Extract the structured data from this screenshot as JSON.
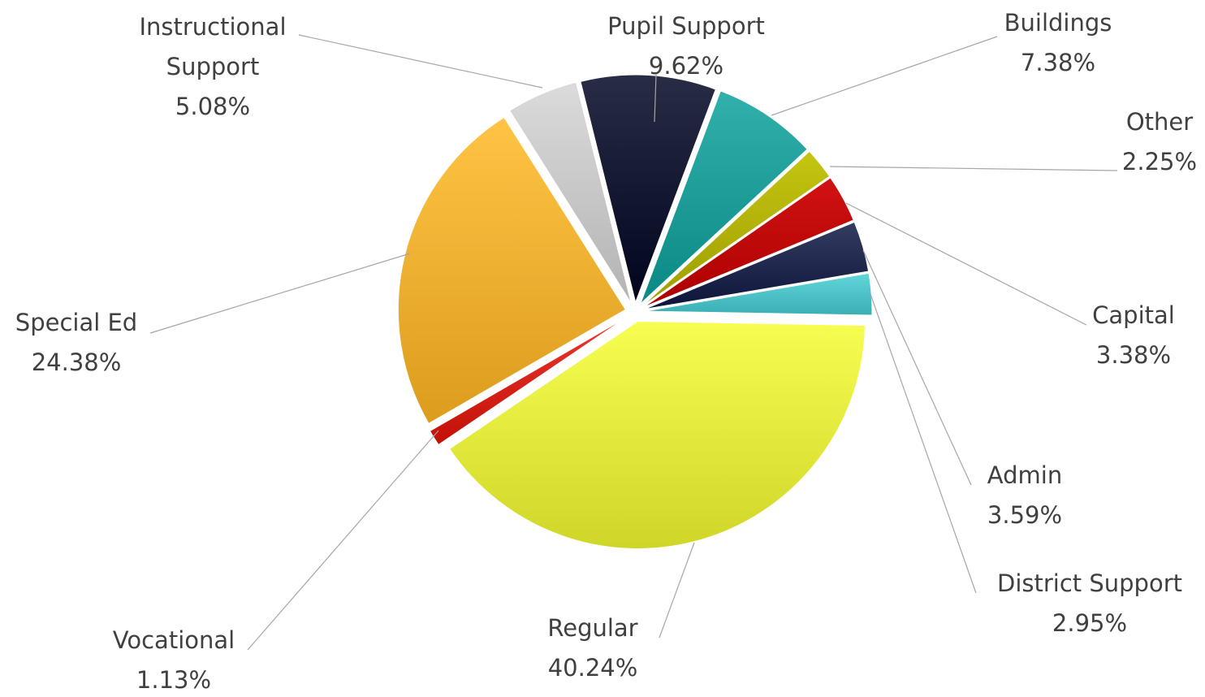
{
  "chart_data": {
    "type": "pie",
    "title": "",
    "legend": "none",
    "slices": [
      {
        "label": "Pupil Support",
        "value": 9.62,
        "display": "9.62%",
        "color": "#161a33"
      },
      {
        "label": "Buildings",
        "value": 7.38,
        "display": "7.38%",
        "color": "#1f9e9a"
      },
      {
        "label": "Other",
        "value": 2.25,
        "display": "2.25%",
        "color": "#b3b300"
      },
      {
        "label": "Capital",
        "value": 3.38,
        "display": "3.38%",
        "color": "#c00000"
      },
      {
        "label": "Admin",
        "value": 3.59,
        "display": "3.59%",
        "color": "#222a4f"
      },
      {
        "label": "District Support",
        "value": 2.95,
        "display": "2.95%",
        "color": "#4fc4c9"
      },
      {
        "label": "Regular",
        "value": 40.24,
        "display": "40.24%",
        "color": "#e6ec3e"
      },
      {
        "label": "Vocational",
        "value": 1.13,
        "display": "1.13%",
        "color": "#d9261c"
      },
      {
        "label": "Special Ed",
        "value": 24.38,
        "display": "24.38%",
        "color": "#f2b233"
      },
      {
        "label": "Instructional Support",
        "value": 5.08,
        "display": "5.08%",
        "color": "#c9c9c9"
      }
    ]
  }
}
